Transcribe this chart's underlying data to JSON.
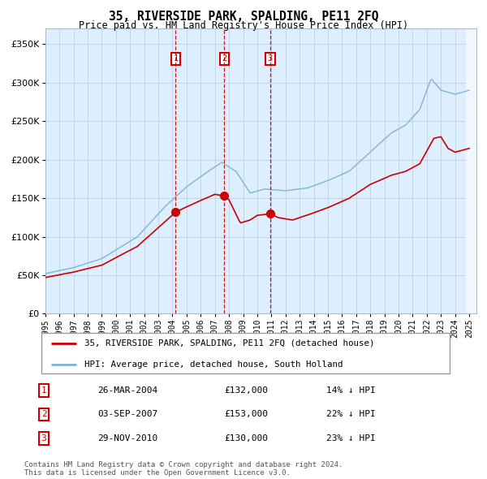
{
  "title": "35, RIVERSIDE PARK, SPALDING, PE11 2FQ",
  "subtitle": "Price paid vs. HM Land Registry's House Price Index (HPI)",
  "footnote": "Contains HM Land Registry data © Crown copyright and database right 2024.\nThis data is licensed under the Open Government Licence v3.0.",
  "legend_line1": "35, RIVERSIDE PARK, SPALDING, PE11 2FQ (detached house)",
  "legend_line2": "HPI: Average price, detached house, South Holland",
  "transactions": [
    {
      "num": 1,
      "date": "26-MAR-2004",
      "price": 132000,
      "pct": "14% ↓ HPI",
      "x_year": 2004.23
    },
    {
      "num": 2,
      "date": "03-SEP-2007",
      "price": 153000,
      "pct": "22% ↓ HPI",
      "x_year": 2007.67
    },
    {
      "num": 3,
      "date": "29-NOV-2010",
      "price": 130000,
      "pct": "23% ↓ HPI",
      "x_year": 2010.91
    }
  ],
  "hpi_color": "#7fb4d8",
  "price_color": "#cc0000",
  "bg_color": "#ddeeff",
  "grid_color": "#c0cfe0",
  "ylim": [
    0,
    370000
  ],
  "xlim_start": 1995.0,
  "xlim_end": 2025.5,
  "yticks": [
    0,
    50000,
    100000,
    150000,
    200000,
    250000,
    300000,
    350000
  ]
}
